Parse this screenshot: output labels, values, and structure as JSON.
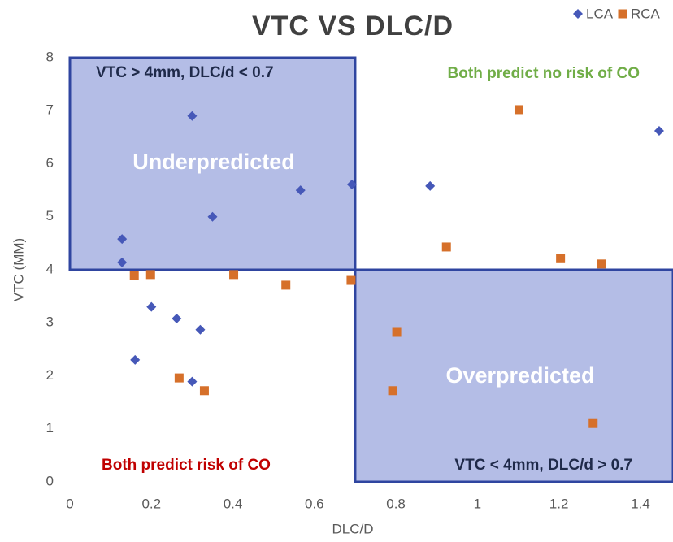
{
  "chart_data": {
    "type": "scatter",
    "title": "VTC VS DLC/D",
    "x_label": "DLC/D",
    "y_label": "VTC (MM)",
    "xlim": [
      0,
      1.48
    ],
    "ylim": [
      0,
      8
    ],
    "xticks": [
      0,
      0.2,
      0.4,
      0.6,
      0.8,
      1,
      1.2,
      1.4
    ],
    "yticks": [
      0,
      1,
      2,
      3,
      4,
      5,
      6,
      7,
      8
    ],
    "legend": "top-right",
    "series": [
      {
        "name": "LCA",
        "color": "#4658b8",
        "marker": "diamond",
        "x": [
          0.3,
          0.128,
          0.128,
          0.35,
          0.566,
          0.692,
          0.884,
          1.446,
          0.2,
          0.262,
          0.32,
          0.16,
          0.3
        ],
        "values": [
          6.9,
          4.58,
          4.14,
          5.0,
          5.5,
          5.61,
          5.58,
          6.62,
          3.3,
          3.08,
          2.87,
          2.3,
          1.89
        ]
      },
      {
        "name": "RCA",
        "color": "#d6702a",
        "marker": "square",
        "x": [
          1.102,
          0.924,
          1.204,
          1.304,
          0.158,
          0.198,
          0.402,
          0.53,
          0.69,
          0.802,
          0.792,
          0.268,
          0.33,
          1.284
        ],
        "values": [
          7.02,
          4.43,
          4.21,
          4.11,
          3.89,
          3.91,
          3.91,
          3.71,
          3.8,
          2.82,
          1.72,
          1.96,
          1.72,
          1.1
        ]
      }
    ],
    "regions": [
      {
        "x": [
          0,
          0.7
        ],
        "y": [
          4,
          8
        ],
        "label": "Underpredicted",
        "color": "#b4bde6",
        "border": "#2f45a0"
      },
      {
        "x": [
          0.7,
          1.48
        ],
        "y": [
          0,
          4
        ],
        "label": "Overpredicted",
        "color": "#b4bde6",
        "border": "#2f45a0"
      }
    ],
    "annotations": [
      {
        "text": "VTC > 4mm, DLC/d < 0.7",
        "color": "#1f2a4a"
      },
      {
        "text": "Both predict no risk of CO",
        "color": "#70ad47"
      },
      {
        "text": "Both predict risk of CO",
        "color": "#c00000"
      },
      {
        "text": "VTC < 4mm, DLC/d > 0.7",
        "color": "#1f2a4a"
      }
    ]
  }
}
